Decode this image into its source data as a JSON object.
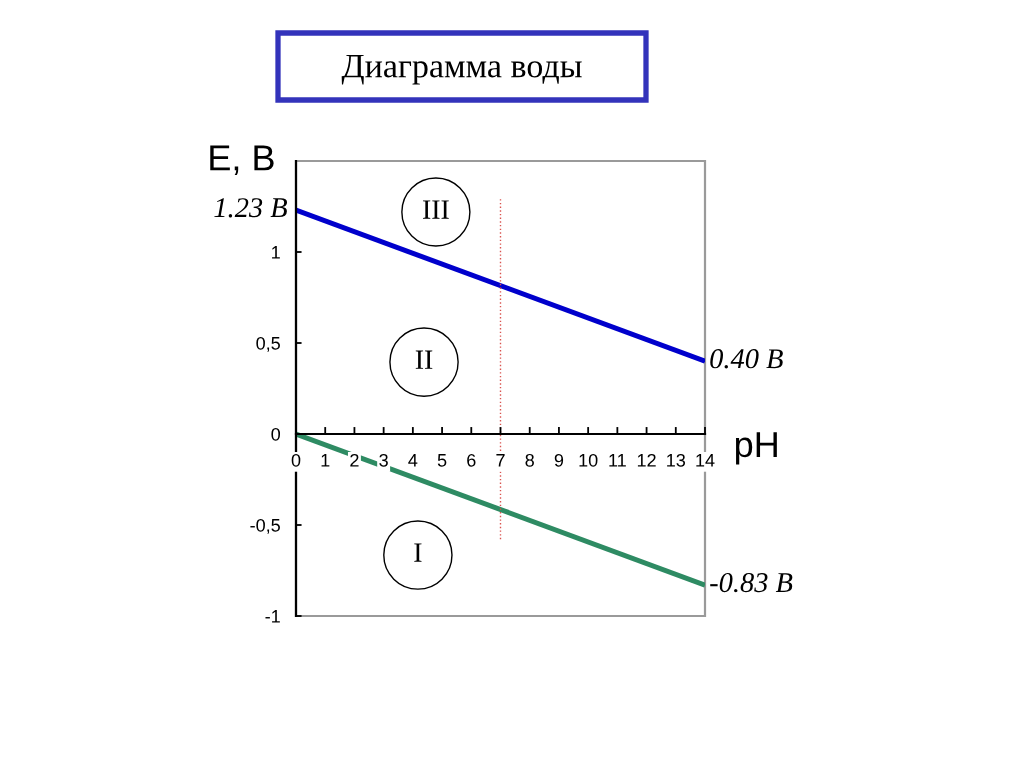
{
  "chart_data": {
    "type": "line",
    "title": "Диаграмма воды",
    "xlabel": "pH",
    "ylabel": "E, В",
    "xlim": [
      0,
      14
    ],
    "xticks": [
      0,
      1,
      2,
      3,
      4,
      5,
      6,
      7,
      8,
      9,
      10,
      11,
      12,
      13,
      14
    ],
    "ylim": [
      -1,
      1.5
    ],
    "yticks": [
      -1,
      {
        "value": -0.5,
        "label": "-0,5"
      },
      0,
      {
        "value": 0.5,
        "label": "0,5"
      },
      1
    ],
    "grid": false,
    "line_style": "solid",
    "series": [
      {
        "color": "#0000cc",
        "x": [
          0,
          14
        ],
        "values": [
          1.23,
          0.4
        ],
        "value_labels": [
          "1.23 В",
          "0.40 В"
        ]
      },
      {
        "color": "#2e8b63",
        "x": [
          0,
          14
        ],
        "values": [
          0,
          -0.83
        ],
        "value_labels": [
          null,
          "-0.83 В"
        ]
      },
      {
        "color": "#d9534f",
        "x": [
          7,
          7
        ],
        "values": [
          1.29,
          -0.58
        ],
        "line_style": "dotted"
      }
    ],
    "annotations": [
      "III",
      "II",
      "I"
    ]
  }
}
